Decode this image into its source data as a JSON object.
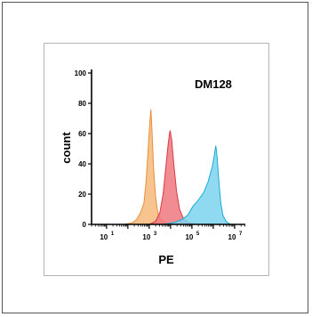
{
  "chart_data": {
    "type": "area",
    "title": "DM128",
    "xlabel": "PE",
    "ylabel": "count",
    "x_scale": "log10",
    "xlim_log10": [
      0.3,
      7.5
    ],
    "ylim": [
      0,
      100
    ],
    "y_ticks": [
      0,
      20,
      40,
      60,
      80,
      100
    ],
    "x_ticks": [
      {
        "base": "10",
        "exp": "1",
        "log10": 1
      },
      {
        "base": "10",
        "exp": "3",
        "log10": 3
      },
      {
        "base": "10",
        "exp": "5",
        "log10": 5
      },
      {
        "base": "10",
        "exp": "7",
        "log10": 7
      }
    ],
    "grid": false,
    "legend": "none",
    "series": [
      {
        "color": "#f6b97a",
        "stroke": "#e8913a",
        "points": [
          [
            1.0,
            0
          ],
          [
            1.8,
            0
          ],
          [
            2.2,
            1
          ],
          [
            2.4,
            3
          ],
          [
            2.6,
            8
          ],
          [
            2.75,
            14
          ],
          [
            2.85,
            28
          ],
          [
            2.95,
            50
          ],
          [
            3.03,
            68
          ],
          [
            3.08,
            76
          ],
          [
            3.13,
            62
          ],
          [
            3.2,
            38
          ],
          [
            3.3,
            18
          ],
          [
            3.4,
            8
          ],
          [
            3.55,
            3
          ],
          [
            3.8,
            1
          ],
          [
            4.3,
            0
          ]
        ]
      },
      {
        "color": "#f07880",
        "stroke": "#d93a44",
        "points": [
          [
            3.0,
            0
          ],
          [
            3.3,
            2
          ],
          [
            3.5,
            8
          ],
          [
            3.65,
            20
          ],
          [
            3.78,
            38
          ],
          [
            3.88,
            52
          ],
          [
            3.95,
            60
          ],
          [
            3.98,
            62
          ],
          [
            4.05,
            56
          ],
          [
            4.15,
            40
          ],
          [
            4.28,
            22
          ],
          [
            4.42,
            10
          ],
          [
            4.6,
            4
          ],
          [
            4.85,
            1
          ],
          [
            5.2,
            0
          ]
        ]
      },
      {
        "color": "#7dd3ef",
        "stroke": "#1aaad6",
        "points": [
          [
            3.6,
            0
          ],
          [
            4.1,
            1
          ],
          [
            4.5,
            3
          ],
          [
            4.8,
            6
          ],
          [
            5.05,
            12
          ],
          [
            5.3,
            16
          ],
          [
            5.55,
            21
          ],
          [
            5.75,
            28
          ],
          [
            5.95,
            38
          ],
          [
            6.05,
            46
          ],
          [
            6.12,
            52
          ],
          [
            6.18,
            44
          ],
          [
            6.25,
            30
          ],
          [
            6.35,
            14
          ],
          [
            6.45,
            6
          ],
          [
            6.6,
            2
          ],
          [
            6.8,
            0
          ]
        ]
      }
    ]
  }
}
